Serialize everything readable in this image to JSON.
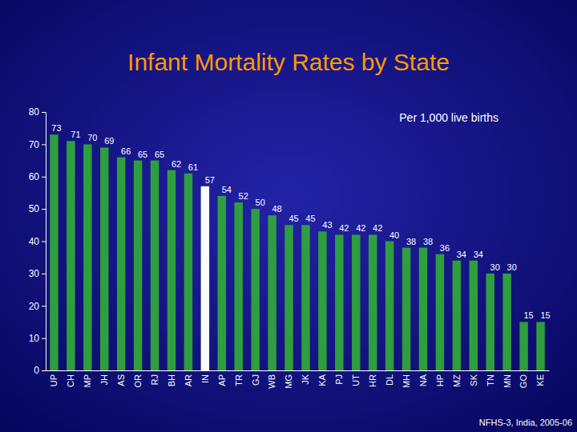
{
  "chart_data": {
    "type": "bar",
    "title": "Infant Mortality Rates by State",
    "annotations": [
      "Per 1,000 live births",
      "NFHS-3, India, 2005-06"
    ],
    "categories": [
      "UP",
      "CH",
      "MP",
      "JH",
      "AS",
      "OR",
      "RJ",
      "BH",
      "AR",
      "IN",
      "AP",
      "TR",
      "GJ",
      "WB",
      "MG",
      "JK",
      "KA",
      "PJ",
      "UT",
      "HR",
      "DL",
      "MH",
      "NA",
      "HP",
      "MZ",
      "SK",
      "TN",
      "MN",
      "GO",
      "KE"
    ],
    "values": [
      73,
      71,
      70,
      69,
      66,
      65,
      65,
      62,
      61,
      57,
      54,
      52,
      50,
      48,
      45,
      45,
      43,
      42,
      42,
      42,
      40,
      38,
      38,
      36,
      34,
      34,
      30,
      30,
      15,
      15
    ],
    "colors": [
      "#2e9e3e",
      "#2e9e3e",
      "#2e9e3e",
      "#2e9e3e",
      "#2e9e3e",
      "#2e9e3e",
      "#2e9e3e",
      "#2e9e3e",
      "#2e9e3e",
      "#ffffff",
      "#2e9e3e",
      "#2e9e3e",
      "#2e9e3e",
      "#2e9e3e",
      "#2e9e3e",
      "#2e9e3e",
      "#2e9e3e",
      "#2e9e3e",
      "#2e9e3e",
      "#2e9e3e",
      "#2e9e3e",
      "#2e9e3e",
      "#2e9e3e",
      "#2e9e3e",
      "#2e9e3e",
      "#2e9e3e",
      "#2e9e3e",
      "#2e9e3e",
      "#2e9e3e",
      "#2e9e3e"
    ],
    "ylim": [
      0,
      80
    ],
    "yticks": [
      0,
      10,
      20,
      30,
      40,
      50,
      60,
      70,
      80
    ],
    "grid": false,
    "data_labels": true
  }
}
